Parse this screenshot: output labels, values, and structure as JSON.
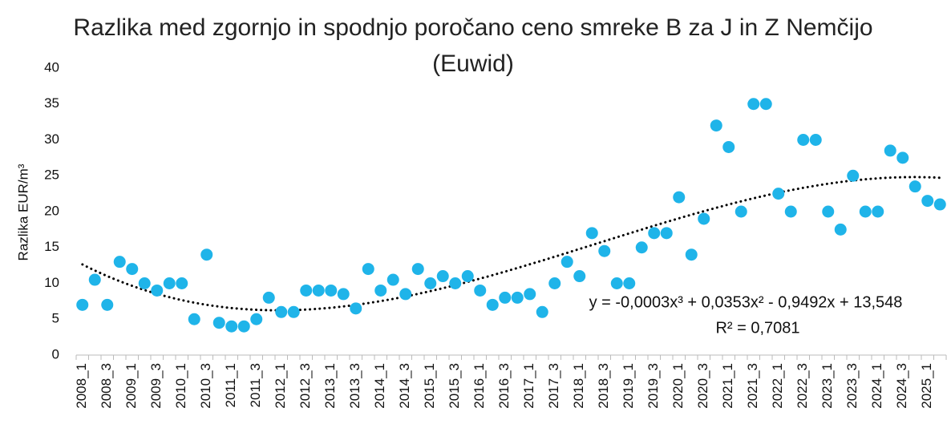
{
  "chart_data": {
    "type": "scatter",
    "title": "Razlika med zgornjo in spodnjo poročano ceno smreke B za J in Z Nemčijo (Euwid)",
    "y_label": "Razlika EUR/m³",
    "categories": [
      "2008_1",
      null,
      "2008_3",
      null,
      "2009_1",
      null,
      "2009_3",
      null,
      "2010_1",
      null,
      "2010_3",
      null,
      "2011_1",
      null,
      "2011_3",
      null,
      "2012_1",
      null,
      "2012_3",
      null,
      "2013_1",
      null,
      "2013_3",
      null,
      "2014_1",
      null,
      "2014_3",
      null,
      "2015_1",
      null,
      "2015_3",
      null,
      "2016_1",
      null,
      "2016_3",
      null,
      "2017_1",
      null,
      "2017_3",
      null,
      "2018_1",
      null,
      "2018_3",
      null,
      "2019_1",
      null,
      "2019_3",
      null,
      "2020_1",
      null,
      "2020_3",
      null,
      "2021_1",
      null,
      "2021_3",
      null,
      "2022_1",
      null,
      "2022_3",
      null,
      "2023_1",
      null,
      "2023_3",
      null,
      "2024_1",
      null,
      "2024_3",
      null,
      "2025_1",
      null
    ],
    "values": [
      7,
      10.5,
      7,
      13,
      12,
      10,
      9,
      10,
      10,
      5,
      14,
      4.5,
      4,
      4,
      5,
      8,
      6,
      6,
      9,
      9,
      9,
      8.5,
      6.5,
      12,
      9,
      10.5,
      8.5,
      12,
      10,
      11,
      10,
      11,
      9,
      7,
      8,
      8,
      8.5,
      6,
      10,
      13,
      11,
      17,
      14.5,
      10,
      10,
      15,
      17,
      17,
      22,
      14,
      19,
      32,
      29,
      20,
      35,
      35,
      22.5,
      20,
      30,
      30,
      20,
      17.5,
      25,
      20,
      20,
      28.5,
      27.5,
      23.5,
      21.5,
      21
    ],
    "color": "#1fb4e9",
    "ylim": [
      0,
      40
    ],
    "yticks": [
      0,
      5,
      10,
      15,
      20,
      25,
      30,
      35,
      40
    ],
    "grid": false,
    "trendline_order": 3,
    "annotations": [
      "y = -0,0003x³ + 0,0353x² - 0,9492x + 13,548",
      "R² = 0,7081"
    ]
  }
}
